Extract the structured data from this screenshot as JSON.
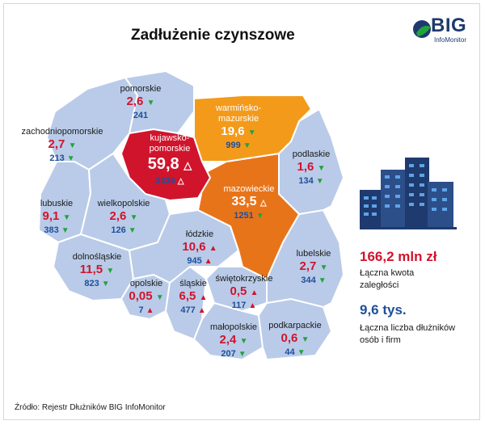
{
  "title": "Zadłużenie czynszowe",
  "logo": {
    "main": "BIG",
    "sub": "InfoMonitor"
  },
  "colors": {
    "map_base": "#b9cbe8",
    "highlight_red": "#d0142c",
    "highlight_orange": "#f39a1b",
    "highlight_dark_orange": "#e8741a",
    "value_red": "#d0142c",
    "value_blue": "#1e4f9a",
    "arrow_green": "#22a33b"
  },
  "regions": [
    {
      "id": "pomorskie",
      "name": "pomorskie",
      "amount": "2,6",
      "amount_trend": "down",
      "count": "241",
      "count_trend": "none"
    },
    {
      "id": "warminsko",
      "name": "warmińsko-\nmazurskie",
      "amount": "19,6",
      "amount_trend": "down",
      "count": "999",
      "count_trend": "down"
    },
    {
      "id": "zachodniopomorskie",
      "name": "zachodniopomorskie",
      "amount": "2,7",
      "amount_trend": "down",
      "count": "213",
      "count_trend": "down"
    },
    {
      "id": "kujawsko",
      "name": "kujawsko-\npomorskie",
      "amount": "59,8",
      "amount_trend": "up",
      "count": "3336",
      "count_trend": "up"
    },
    {
      "id": "podlaskie",
      "name": "podlaskie",
      "amount": "1,6",
      "amount_trend": "down",
      "count": "134",
      "count_trend": "down"
    },
    {
      "id": "lubuskie",
      "name": "lubuskie",
      "amount": "9,1",
      "amount_trend": "down",
      "count": "383",
      "count_trend": "down"
    },
    {
      "id": "wielkopolskie",
      "name": "wielkopolskie",
      "amount": "2,6",
      "amount_trend": "down",
      "count": "126",
      "count_trend": "down"
    },
    {
      "id": "mazowieckie",
      "name": "mazowieckie",
      "amount": "33,5",
      "amount_trend": "up",
      "count": "1251",
      "count_trend": "down"
    },
    {
      "id": "lodzkie",
      "name": "łódzkie",
      "amount": "10,6",
      "amount_trend": "up",
      "count": "945",
      "count_trend": "up"
    },
    {
      "id": "dolnoslaskie",
      "name": "dolnośląskie",
      "amount": "11,5",
      "amount_trend": "down",
      "count": "823",
      "count_trend": "down"
    },
    {
      "id": "lubelskie",
      "name": "lubelskie",
      "amount": "2,7",
      "amount_trend": "down",
      "count": "344",
      "count_trend": "down"
    },
    {
      "id": "opolskie",
      "name": "opolskie",
      "amount": "0,05",
      "amount_trend": "down",
      "count": "7",
      "count_trend": "up"
    },
    {
      "id": "slaskie",
      "name": "śląskie",
      "amount": "6,5",
      "amount_trend": "up",
      "count": "477",
      "count_trend": "up"
    },
    {
      "id": "swietokrzyskie",
      "name": "świętokrzyskie",
      "amount": "0,5",
      "amount_trend": "up",
      "count": "117",
      "count_trend": "up"
    },
    {
      "id": "podkarpackie",
      "name": "podkarpackie",
      "amount": "0,6",
      "amount_trend": "down",
      "count": "44",
      "count_trend": "down"
    },
    {
      "id": "malopolskie",
      "name": "małopolskie",
      "amount": "2,4",
      "amount_trend": "down",
      "count": "207",
      "count_trend": "down"
    }
  ],
  "summary": {
    "total_amount": "166,2 mln zł",
    "total_amount_caption": "Łączna kwota zaległości",
    "total_debtors": "9,6 tys.",
    "total_debtors_caption": "Łączna liczba dłużników osób i firm"
  },
  "source": "Źródło: Rejestr Dłużników BIG InfoMonitor",
  "icons": {
    "logo": "big-logo-icon",
    "buildings": "buildings-icon"
  }
}
